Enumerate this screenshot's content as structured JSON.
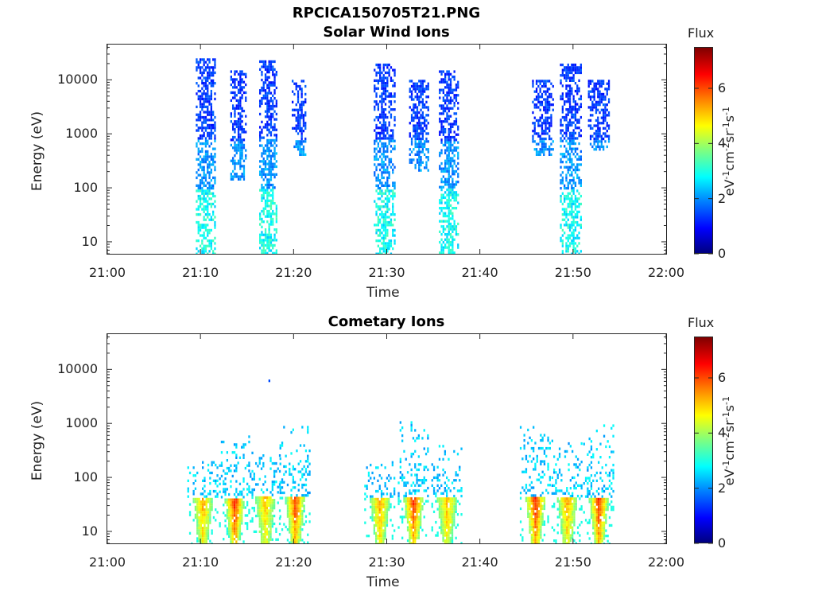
{
  "figure": {
    "filename": "RPCICA150705T21.PNG"
  },
  "colormap": [
    "#00007f",
    "#0000ff",
    "#007fff",
    "#00ffff",
    "#7fff7f",
    "#ffff00",
    "#ff7f00",
    "#ff0000",
    "#7f0000"
  ],
  "chart_data": [
    {
      "type": "heatmap",
      "title": "Solar Wind Ions",
      "xlabel": "Time",
      "ylabel": "Energy (eV)",
      "x_ticks": [
        "21:00",
        "21:10",
        "21:20",
        "21:30",
        "21:40",
        "21:50",
        "22:00"
      ],
      "x_range_minutes": [
        0,
        60
      ],
      "y_scale": "log",
      "y_ticks": [
        "10",
        "100",
        "1000",
        "10000"
      ],
      "y_range": [
        6,
        45000
      ],
      "grid": false,
      "colorbar": {
        "title": "Flux",
        "label": "eV-1cm-2sr-1s-1",
        "ticks": [
          "0",
          "2",
          "4",
          "6"
        ],
        "range": [
          0,
          7.5
        ]
      },
      "bursts": [
        {
          "t_start": 9.5,
          "t_end": 11.6,
          "e_low": 6,
          "e_high": 25000,
          "peak_flux": 2.2
        },
        {
          "t_start": 13.2,
          "t_end": 14.9,
          "e_low": 150,
          "e_high": 15000,
          "peak_flux": 1.9
        },
        {
          "t_start": 16.3,
          "t_end": 18.2,
          "e_low": 6,
          "e_high": 23000,
          "peak_flux": 2.1
        },
        {
          "t_start": 19.8,
          "t_end": 21.3,
          "e_low": 400,
          "e_high": 10000,
          "peak_flux": 2.0
        },
        {
          "t_start": 28.6,
          "t_end": 30.8,
          "e_low": 6,
          "e_high": 20000,
          "peak_flux": 2.3
        },
        {
          "t_start": 32.4,
          "t_end": 34.5,
          "e_low": 200,
          "e_high": 10000,
          "peak_flux": 2.0
        },
        {
          "t_start": 35.6,
          "t_end": 37.6,
          "e_low": 6,
          "e_high": 15000,
          "peak_flux": 2.6
        },
        {
          "t_start": 45.6,
          "t_end": 47.9,
          "e_low": 400,
          "e_high": 10000,
          "peak_flux": 2.0
        },
        {
          "t_start": 48.6,
          "t_end": 50.8,
          "e_low": 6,
          "e_high": 20000,
          "peak_flux": 2.4
        },
        {
          "t_start": 51.6,
          "t_end": 53.9,
          "e_low": 500,
          "e_high": 10000,
          "peak_flux": 2.1
        }
      ]
    },
    {
      "type": "heatmap",
      "title": "Cometary Ions",
      "xlabel": "Time",
      "ylabel": "Energy (eV)",
      "x_ticks": [
        "21:00",
        "21:10",
        "21:20",
        "21:30",
        "21:40",
        "21:50",
        "22:00"
      ],
      "x_range_minutes": [
        0,
        60
      ],
      "y_scale": "log",
      "y_ticks": [
        "10",
        "100",
        "1000",
        "10000"
      ],
      "y_range": [
        6,
        45000
      ],
      "grid": false,
      "colorbar": {
        "title": "Flux",
        "label": "eV-1cm-2sr-1s-1",
        "ticks": [
          "0",
          "2",
          "4",
          "6"
        ],
        "range": [
          0,
          7.5
        ]
      },
      "bursts": [
        {
          "t_center": 10.2,
          "e_top": 200,
          "peak_flux": 5.4
        },
        {
          "t_center": 13.6,
          "t_end": 14.8,
          "e_top": 600,
          "peak_flux": 6.5
        },
        {
          "t_center": 16.9,
          "e_top": 300,
          "peak_flux": 5.2
        },
        {
          "t_center": 20.1,
          "e_top": 900,
          "peak_flux": 6.2
        },
        {
          "t_center": 29.2,
          "e_top": 200,
          "peak_flux": 5.6
        },
        {
          "t_center": 32.8,
          "e_top": 1100,
          "peak_flux": 6.4
        },
        {
          "t_center": 36.4,
          "e_top": 400,
          "peak_flux": 5.3
        },
        {
          "t_center": 45.9,
          "e_top": 1000,
          "peak_flux": 6.5
        },
        {
          "t_center": 49.3,
          "e_top": 500,
          "peak_flux": 5.5
        },
        {
          "t_center": 52.7,
          "e_top": 1200,
          "peak_flux": 6.4
        }
      ],
      "outliers": [
        {
          "t": 17.3,
          "e": 6500,
          "flux": 1.5
        }
      ]
    }
  ]
}
